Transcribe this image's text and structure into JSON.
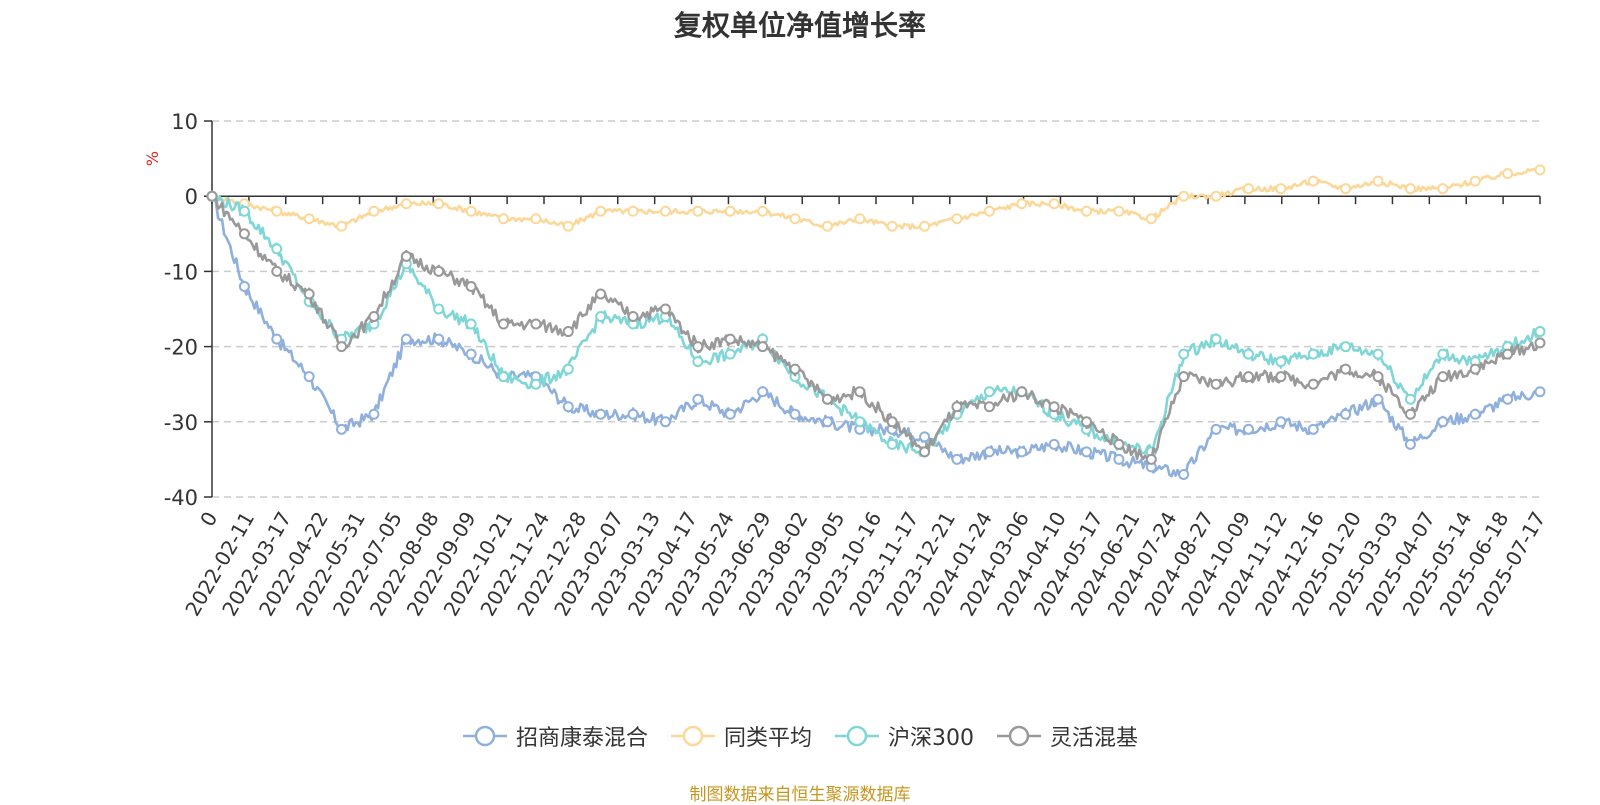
{
  "chart_data": {
    "type": "line",
    "title": "复权单位净值增长率",
    "ylabel": "%",
    "ylim": [
      -40,
      10
    ],
    "yticks": [
      10,
      0,
      -10,
      -20,
      -30,
      -40
    ],
    "x_tick_labels": [
      "0",
      "2022-02-11",
      "2022-03-17",
      "2022-04-22",
      "2022-05-31",
      "2022-07-05",
      "2022-08-08",
      "2022-09-09",
      "2022-10-21",
      "2022-11-24",
      "2022-12-28",
      "2023-02-07",
      "2023-03-13",
      "2023-04-17",
      "2023-05-24",
      "2023-06-29",
      "2023-08-02",
      "2023-09-05",
      "2023-10-16",
      "2023-11-17",
      "2023-12-21",
      "2024-01-24",
      "2024-03-06",
      "2024-04-10",
      "2024-05-17",
      "2024-06-21",
      "2024-07-24",
      "2024-08-27",
      "2024-10-09",
      "2024-11-12",
      "2024-12-16",
      "2025-01-20",
      "2025-03-03",
      "2025-04-07",
      "2025-05-14",
      "2025-06-18",
      "2025-07-17"
    ],
    "grid": true,
    "legend_position": "bottom",
    "series": [
      {
        "name": "招商康泰混合",
        "color": "#8fb0dc",
        "values": [
          0,
          -12,
          -19,
          -24,
          -31,
          -29,
          -19,
          -19,
          -21,
          -24,
          -24,
          -28,
          -29,
          -29,
          -30,
          -27,
          -29,
          -26,
          -29,
          -30,
          -31,
          -31,
          -32,
          -35,
          -34,
          -34,
          -33,
          -34,
          -35,
          -36,
          -37,
          -31,
          -31,
          -30,
          -31,
          -29,
          -27,
          -33,
          -30,
          -29,
          -27,
          -26
        ]
      },
      {
        "name": "同类平均",
        "color": "#fcd898",
        "values": [
          0,
          -1,
          -2,
          -3,
          -4,
          -2,
          -1,
          -1,
          -2,
          -3,
          -3,
          -4,
          -2,
          -2,
          -2,
          -2,
          -2,
          -2,
          -3,
          -4,
          -3,
          -4,
          -4,
          -3,
          -2,
          -1,
          -1,
          -2,
          -2,
          -3,
          0,
          0,
          1,
          1,
          2,
          1,
          2,
          1,
          1,
          2,
          3,
          3.5
        ]
      },
      {
        "name": "沪深300",
        "color": "#7fd6d6",
        "values": [
          0,
          -2,
          -7,
          -14,
          -19,
          -17,
          -9,
          -15,
          -17,
          -24,
          -25,
          -23,
          -16,
          -17,
          -16,
          -22,
          -21,
          -19,
          -24,
          -27,
          -30,
          -33,
          -34,
          -29,
          -26,
          -26,
          -29,
          -31,
          -33,
          -34,
          -21,
          -19,
          -21,
          -22,
          -21,
          -20,
          -21,
          -27,
          -21,
          -22,
          -20,
          -18
        ]
      },
      {
        "name": "灵活混基",
        "color": "#999999",
        "values": [
          0,
          -5,
          -10,
          -13,
          -20,
          -16,
          -8,
          -10,
          -12,
          -17,
          -17,
          -18,
          -13,
          -16,
          -15,
          -20,
          -19,
          -20,
          -23,
          -27,
          -26,
          -30,
          -34,
          -28,
          -28,
          -26,
          -28,
          -30,
          -33,
          -35,
          -24,
          -25,
          -24,
          -24,
          -25,
          -23,
          -24,
          -29,
          -24,
          -23,
          -21,
          -19.5
        ]
      }
    ]
  },
  "source_note": "制图数据来自恒生聚源数据库"
}
